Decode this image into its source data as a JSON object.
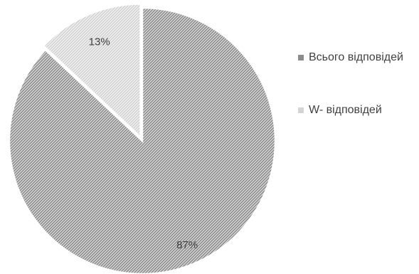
{
  "chart_data": {
    "type": "pie",
    "categories": [
      "Всього відповідей",
      "W- відповідей"
    ],
    "values": [
      87,
      13
    ],
    "data_labels": [
      "87%",
      "13%"
    ],
    "colors": [
      "#9a9a9a",
      "#d9d9d9"
    ],
    "legend_position": "right",
    "start_angle_deg": 0,
    "direction": "clockwise",
    "exploded_slice": "W- відповідей"
  }
}
